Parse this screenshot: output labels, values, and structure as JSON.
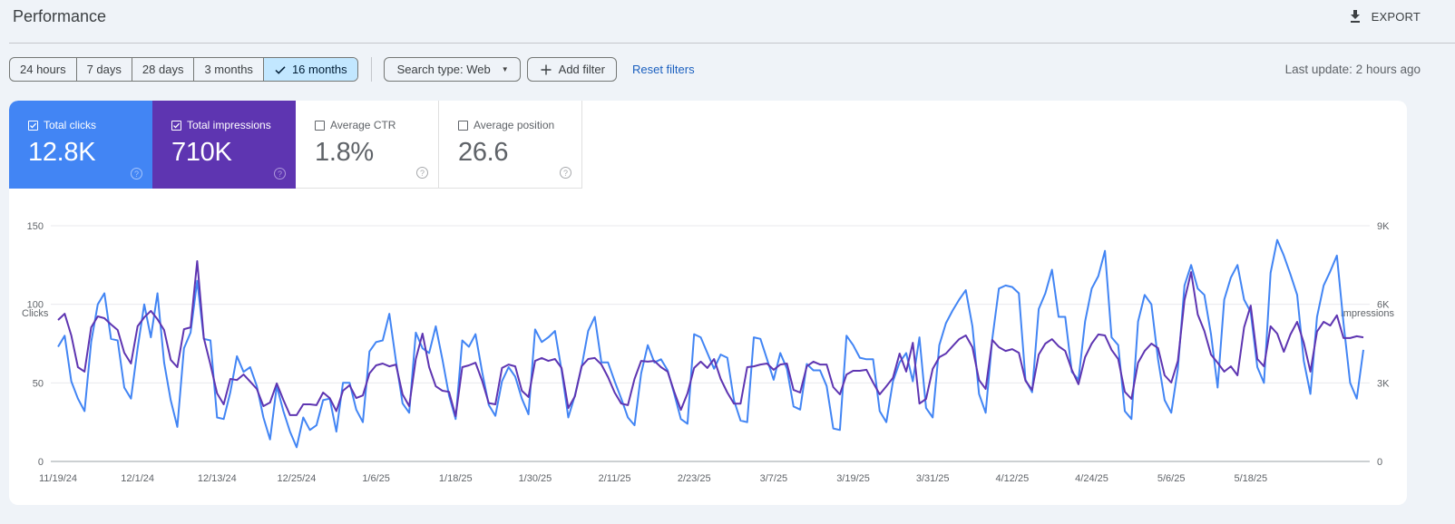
{
  "header": {
    "title": "Performance",
    "export_label": "EXPORT",
    "export_icon": "download-icon"
  },
  "toolbar": {
    "date_ranges": [
      {
        "label": "24 hours",
        "active": false
      },
      {
        "label": "7 days",
        "active": false
      },
      {
        "label": "28 days",
        "active": false
      },
      {
        "label": "3 months",
        "active": false
      },
      {
        "label": "16 months",
        "active": true
      }
    ],
    "search_type_label": "Search type: Web",
    "add_filter_label": "Add filter",
    "reset_filters_label": "Reset filters",
    "last_update": "Last update: 2 hours ago"
  },
  "metrics": [
    {
      "label": "Total clicks",
      "value": "12.8K",
      "checked": true,
      "color": "#4285f4"
    },
    {
      "label": "Total impressions",
      "value": "710K",
      "checked": true,
      "color": "#5e35b1"
    },
    {
      "label": "Average CTR",
      "value": "1.8%",
      "checked": false,
      "color": "#ffffff"
    },
    {
      "label": "Average position",
      "value": "26.6",
      "checked": false,
      "color": "#ffffff"
    }
  ],
  "colors": {
    "clicks": "#4285f4",
    "impressions": "#5e35b1",
    "link": "#1a5fbf",
    "active_chip": "#c2e7ff",
    "background": "#eff3f8"
  },
  "chart_data": {
    "type": "line",
    "title": "",
    "xlabel": "",
    "ylabel": "Clicks",
    "y2label": "Impressions",
    "ylim": [
      0,
      150
    ],
    "y2lim": [
      0,
      9000
    ],
    "yticks": [
      "0",
      "50",
      "100",
      "150"
    ],
    "y2ticks": [
      "0",
      "3K",
      "6K",
      "9K"
    ],
    "x_ticks": [
      "11/19/24",
      "12/1/24",
      "12/13/24",
      "12/25/24",
      "1/6/25",
      "1/18/25",
      "1/30/25",
      "2/11/25",
      "2/23/25",
      "3/7/25",
      "3/19/25",
      "3/31/25",
      "4/12/25",
      "4/24/25",
      "5/6/25",
      "5/18/25"
    ],
    "x_start": "11/19/24",
    "grid": true,
    "legend": false,
    "series": [
      {
        "name": "Clicks",
        "axis": "left",
        "color": "#4285f4",
        "values": [
          73,
          80,
          51,
          40,
          32,
          76,
          100,
          107,
          78,
          77,
          47,
          40,
          72,
          100,
          79,
          107,
          63,
          39,
          22,
          72,
          82,
          115,
          78,
          77,
          28,
          27,
          44,
          67,
          57,
          60,
          48,
          28,
          14,
          48,
          32,
          19,
          9,
          28,
          20,
          23,
          39,
          40,
          19,
          50,
          50,
          33,
          25,
          70,
          76,
          77,
          94,
          64,
          37,
          31,
          82,
          72,
          69,
          86,
          65,
          42,
          27,
          77,
          73,
          81,
          57,
          36,
          29,
          51,
          60,
          54,
          40,
          30,
          84,
          76,
          79,
          83,
          58,
          28,
          42,
          60,
          83,
          92,
          63,
          63,
          51,
          40,
          28,
          23,
          56,
          74,
          63,
          65,
          58,
          43,
          27,
          24,
          81,
          79,
          69,
          59,
          68,
          66,
          39,
          26,
          25,
          79,
          78,
          65,
          52,
          69,
          59,
          35,
          33,
          62,
          58,
          58,
          48,
          21,
          20,
          80,
          74,
          66,
          65,
          65,
          32,
          25,
          51,
          63,
          69,
          51,
          79,
          34,
          28,
          74,
          88,
          96,
          103,
          109,
          86,
          43,
          31,
          78,
          110,
          112,
          111,
          107,
          52,
          44,
          97,
          107,
          122,
          92,
          92,
          57,
          52,
          89,
          110,
          118,
          134,
          79,
          74,
          32,
          27,
          89,
          106,
          100,
          65,
          39,
          31,
          59,
          112,
          125,
          110,
          106,
          81,
          47,
          103,
          117,
          125,
          103,
          95,
          60,
          50,
          120,
          141,
          131,
          119,
          106,
          64,
          43,
          92,
          112,
          121,
          131,
          88,
          50,
          40,
          71
        ]
      },
      {
        "name": "Impressions",
        "axis": "right",
        "color": "#5e35b1",
        "values": [
          5400,
          5640,
          4810,
          3600,
          3430,
          5120,
          5540,
          5470,
          5230,
          5020,
          4150,
          3740,
          5160,
          5500,
          5750,
          5430,
          5020,
          3880,
          3600,
          5050,
          5120,
          7650,
          4710,
          3700,
          2600,
          2180,
          3150,
          3110,
          3320,
          3050,
          2770,
          2110,
          2250,
          2980,
          2350,
          1770,
          1770,
          2180,
          2180,
          2150,
          2630,
          2420,
          1920,
          2700,
          2910,
          2420,
          2520,
          3360,
          3670,
          3740,
          3630,
          3700,
          2560,
          2110,
          3910,
          4880,
          3600,
          2870,
          2700,
          2660,
          1730,
          3600,
          3670,
          3770,
          3080,
          2230,
          2180,
          3570,
          3700,
          3630,
          2700,
          2460,
          3840,
          3950,
          3840,
          3910,
          3570,
          2040,
          2490,
          3630,
          3910,
          3950,
          3700,
          3220,
          2630,
          2210,
          2150,
          3150,
          3840,
          3810,
          3840,
          3600,
          3430,
          2660,
          1970,
          2600,
          3570,
          3810,
          3570,
          3910,
          3150,
          2630,
          2210,
          2210,
          3600,
          3630,
          3700,
          3740,
          3500,
          3700,
          3740,
          2730,
          2630,
          3630,
          3810,
          3700,
          3700,
          2840,
          2560,
          3320,
          3460,
          3460,
          3500,
          3010,
          2560,
          2870,
          3190,
          4120,
          3430,
          4530,
          2210,
          2390,
          3530,
          3980,
          4120,
          4400,
          4670,
          4810,
          4360,
          3110,
          2770,
          4640,
          4360,
          4220,
          4290,
          4150,
          3080,
          2730,
          4080,
          4500,
          4670,
          4400,
          4220,
          3500,
          2950,
          3980,
          4500,
          4850,
          4810,
          4260,
          3910,
          2660,
          2390,
          3770,
          4220,
          4500,
          4330,
          3290,
          3010,
          3840,
          6160,
          7230,
          5610,
          4980,
          4080,
          3770,
          3430,
          3630,
          3290,
          5120,
          5950,
          3910,
          3630,
          5160,
          4880,
          4190,
          4850,
          5330,
          4530,
          3430,
          4960,
          5330,
          5190,
          5580,
          4710,
          4710,
          4780,
          4740
        ]
      }
    ]
  }
}
